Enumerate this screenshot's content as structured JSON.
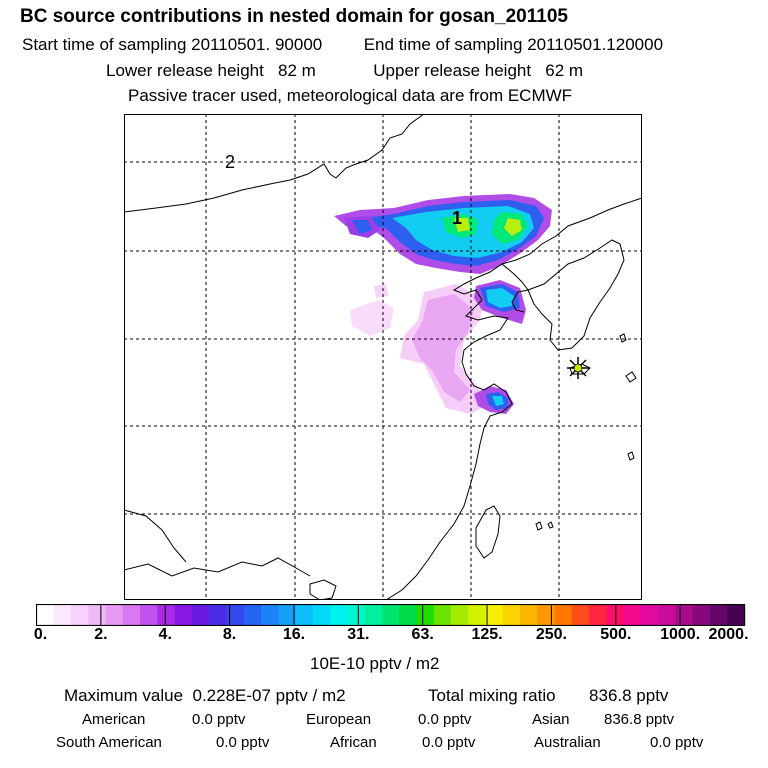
{
  "header": {
    "title": "BC  source contributions in nested domain for gosan_201105",
    "sampling_start_label": "Start time of sampling",
    "sampling_start": "20110501. 90000",
    "sampling_end_label": "End time of sampling",
    "sampling_end": "20110501.120000",
    "lower_height_label": "Lower release height",
    "lower_height": "82 m",
    "upper_height_label": "Upper release height",
    "upper_height": "62 m",
    "note": "Passive tracer used, meteorological data are from ECMWF"
  },
  "chart_data": {
    "type": "heatmap",
    "map_labels": [
      "1",
      "2"
    ],
    "receptor_marker": "star-icon",
    "colorbar": {
      "tick_labels": [
        "0.",
        "2.",
        "4.",
        "8.",
        "16.",
        "31.",
        "63.",
        "125.",
        "250.",
        "500.",
        "1000.",
        "2000."
      ],
      "unit": "10E-10 pptv / m2",
      "colors": [
        "#ffffff",
        "#fde9ff",
        "#f8d2fc",
        "#f2b9f8",
        "#e79af4",
        "#d878f2",
        "#c252ef",
        "#a92ae8",
        "#8a18e2",
        "#6a1ae0",
        "#4a2ee6",
        "#3348ee",
        "#2563f2",
        "#1d82f5",
        "#159ff7",
        "#0ebef8",
        "#05d9f8",
        "#00f0ee",
        "#00f7cc",
        "#00f0a0",
        "#00e472",
        "#00dc4a",
        "#22dc00",
        "#6ce400",
        "#a3ec00",
        "#d2f200",
        "#f4f000",
        "#fad400",
        "#fcb600",
        "#fd9800",
        "#ff7600",
        "#ff4c1c",
        "#ff2640",
        "#ff0e6a",
        "#f4088e",
        "#e00aa0",
        "#c80c9c",
        "#a60c8c",
        "#86087a",
        "#660668",
        "#440450"
      ]
    }
  },
  "summary": {
    "max_label": "Maximum value",
    "max_value": "0.228E-07 pptv / m2",
    "total_label": "Total mixing ratio",
    "total_value": "836.8 pptv",
    "regions": [
      {
        "name": "American",
        "value": "0.0 pptv"
      },
      {
        "name": "European",
        "value": "0.0 pptv"
      },
      {
        "name": "Asian",
        "value": "836.8 pptv"
      },
      {
        "name": "South American",
        "value": "0.0 pptv"
      },
      {
        "name": "African",
        "value": "0.0 pptv"
      },
      {
        "name": "Australian",
        "value": "0.0 pptv"
      }
    ]
  },
  "colors": {
    "background": "#ffffff",
    "frame": "#000000"
  }
}
